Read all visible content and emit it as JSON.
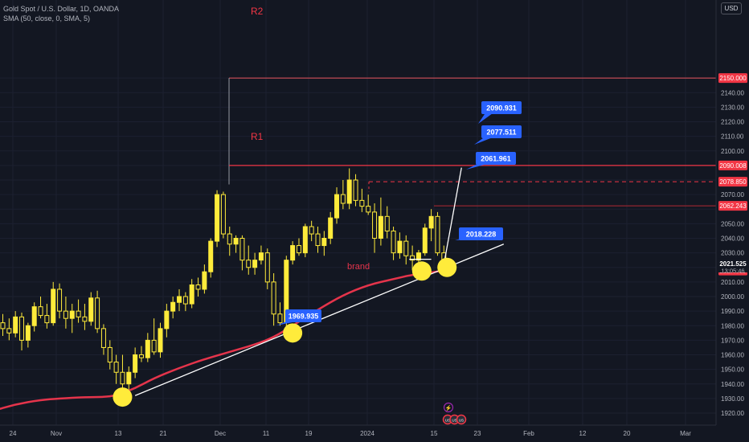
{
  "header": {
    "symbol_line": "Gold Spot / U.S. Dollar, 1D, OANDA",
    "indicator_line": "SMA (50, close, 0, SMA, 5)",
    "currency_button": "USD"
  },
  "chart_data": {
    "type": "candlestick",
    "symbol": "Gold Spot / U.S. Dollar",
    "interval": "1D",
    "source": "OANDA",
    "ylim": [
      1914,
      2163
    ],
    "y_ticks": [
      1920,
      1930,
      1940,
      1950,
      1960,
      1970,
      1980,
      1990,
      2000,
      2010,
      2020,
      2030,
      2040,
      2050,
      2060,
      2070,
      2080,
      2090,
      2100,
      2110,
      2120,
      2130,
      2140,
      2150
    ],
    "x_tick_labels": [
      "24",
      "Nov",
      "13",
      "21",
      "Dec",
      "11",
      "19",
      "2024",
      "15",
      "23",
      "Feb",
      "12",
      "20",
      "Mar"
    ],
    "current_price": "2021.525",
    "countdown": "13:05:46",
    "price_markers": [
      "2150.000",
      "2090.008",
      "2078.850",
      "2062.243",
      "2017.880"
    ],
    "levels": [
      {
        "name": "R2",
        "value": 2150.0,
        "label": "R2"
      },
      {
        "name": "R1",
        "value": 2090.008,
        "label": "R1"
      },
      {
        "name": "dashed",
        "value": 2078.85
      },
      {
        "name": "level-2062",
        "value": 2062.243
      }
    ],
    "callouts": [
      "2090.931",
      "2077.511",
      "2061.961",
      "2018.228",
      "1969.935"
    ],
    "sma_label": "brand",
    "colors": {
      "candle": "#ffeb3b",
      "sma": "#e5344b",
      "level": "#f23645",
      "callout": "#2962ff",
      "circle": "#ffeb3b",
      "trendline": "#ffffff",
      "background": "#131722"
    },
    "candles": [
      {
        "o": 1982,
        "h": 1988,
        "l": 1973,
        "c": 1978
      },
      {
        "o": 1978,
        "h": 1985,
        "l": 1970,
        "c": 1975
      },
      {
        "o": 1975,
        "h": 1990,
        "l": 1972,
        "c": 1986
      },
      {
        "o": 1986,
        "h": 1989,
        "l": 1963,
        "c": 1970
      },
      {
        "o": 1970,
        "h": 1982,
        "l": 1965,
        "c": 1980
      },
      {
        "o": 1980,
        "h": 1996,
        "l": 1976,
        "c": 1993
      },
      {
        "o": 1993,
        "h": 2000,
        "l": 1985,
        "c": 1987
      },
      {
        "o": 1987,
        "h": 1995,
        "l": 1978,
        "c": 1982
      },
      {
        "o": 1982,
        "h": 2010,
        "l": 1980,
        "c": 2005
      },
      {
        "o": 2005,
        "h": 2009,
        "l": 1985,
        "c": 1990
      },
      {
        "o": 1990,
        "h": 2000,
        "l": 1978,
        "c": 1985
      },
      {
        "o": 1985,
        "h": 1995,
        "l": 1975,
        "c": 1990
      },
      {
        "o": 1990,
        "h": 1998,
        "l": 1982,
        "c": 1986
      },
      {
        "o": 1986,
        "h": 1995,
        "l": 1977,
        "c": 1983
      },
      {
        "o": 1983,
        "h": 2003,
        "l": 1980,
        "c": 1999
      },
      {
        "o": 1999,
        "h": 2004,
        "l": 1975,
        "c": 1978
      },
      {
        "o": 1978,
        "h": 1981,
        "l": 1960,
        "c": 1965
      },
      {
        "o": 1965,
        "h": 1970,
        "l": 1950,
        "c": 1955
      },
      {
        "o": 1955,
        "h": 1960,
        "l": 1940,
        "c": 1948
      },
      {
        "o": 1948,
        "h": 1960,
        "l": 1935,
        "c": 1940
      },
      {
        "o": 1940,
        "h": 1952,
        "l": 1932,
        "c": 1948
      },
      {
        "o": 1948,
        "h": 1965,
        "l": 1944,
        "c": 1960
      },
      {
        "o": 1960,
        "h": 1966,
        "l": 1955,
        "c": 1958
      },
      {
        "o": 1958,
        "h": 1975,
        "l": 1955,
        "c": 1970
      },
      {
        "o": 1970,
        "h": 1985,
        "l": 1960,
        "c": 1962
      },
      {
        "o": 1962,
        "h": 1982,
        "l": 1958,
        "c": 1978
      },
      {
        "o": 1978,
        "h": 1995,
        "l": 1972,
        "c": 1990
      },
      {
        "o": 1990,
        "h": 2000,
        "l": 1985,
        "c": 1996
      },
      {
        "o": 1996,
        "h": 2005,
        "l": 1990,
        "c": 2000
      },
      {
        "o": 2000,
        "h": 2003,
        "l": 1990,
        "c": 1995
      },
      {
        "o": 1995,
        "h": 2012,
        "l": 1992,
        "c": 2008
      },
      {
        "o": 2008,
        "h": 2013,
        "l": 2000,
        "c": 2005
      },
      {
        "o": 2005,
        "h": 2022,
        "l": 2002,
        "c": 2017
      },
      {
        "o": 2017,
        "h": 2040,
        "l": 2013,
        "c": 2038
      },
      {
        "o": 2038,
        "h": 2073,
        "l": 2034,
        "c": 2070
      },
      {
        "o": 2070,
        "h": 2072,
        "l": 2040,
        "c": 2043
      },
      {
        "o": 2043,
        "h": 2048,
        "l": 2028,
        "c": 2036
      },
      {
        "o": 2036,
        "h": 2042,
        "l": 2030,
        "c": 2040
      },
      {
        "o": 2040,
        "h": 2042,
        "l": 2018,
        "c": 2025
      },
      {
        "o": 2025,
        "h": 2035,
        "l": 2015,
        "c": 2020
      },
      {
        "o": 2020,
        "h": 2030,
        "l": 2015,
        "c": 2025
      },
      {
        "o": 2025,
        "h": 2035,
        "l": 2022,
        "c": 2030
      },
      {
        "o": 2030,
        "h": 2033,
        "l": 2005,
        "c": 2010
      },
      {
        "o": 2010,
        "h": 2016,
        "l": 1980,
        "c": 1988
      },
      {
        "o": 1988,
        "h": 1996,
        "l": 1980,
        "c": 1982
      },
      {
        "o": 1982,
        "h": 2028,
        "l": 1975,
        "c": 2025
      },
      {
        "o": 2025,
        "h": 2038,
        "l": 2022,
        "c": 2035
      },
      {
        "o": 2035,
        "h": 2040,
        "l": 2028,
        "c": 2030
      },
      {
        "o": 2030,
        "h": 2050,
        "l": 2027,
        "c": 2048
      },
      {
        "o": 2048,
        "h": 2052,
        "l": 2038,
        "c": 2043
      },
      {
        "o": 2043,
        "h": 2048,
        "l": 2030,
        "c": 2035
      },
      {
        "o": 2035,
        "h": 2045,
        "l": 2028,
        "c": 2040
      },
      {
        "o": 2040,
        "h": 2058,
        "l": 2036,
        "c": 2054
      },
      {
        "o": 2054,
        "h": 2075,
        "l": 2050,
        "c": 2070
      },
      {
        "o": 2070,
        "h": 2080,
        "l": 2060,
        "c": 2064
      },
      {
        "o": 2064,
        "h": 2088,
        "l": 2060,
        "c": 2080
      },
      {
        "o": 2080,
        "h": 2084,
        "l": 2062,
        "c": 2066
      },
      {
        "o": 2066,
        "h": 2074,
        "l": 2058,
        "c": 2062
      },
      {
        "o": 2062,
        "h": 2070,
        "l": 2056,
        "c": 2058
      },
      {
        "o": 2058,
        "h": 2064,
        "l": 2030,
        "c": 2040
      },
      {
        "o": 2040,
        "h": 2068,
        "l": 2035,
        "c": 2055
      },
      {
        "o": 2055,
        "h": 2062,
        "l": 2040,
        "c": 2045
      },
      {
        "o": 2045,
        "h": 2048,
        "l": 2025,
        "c": 2030
      },
      {
        "o": 2030,
        "h": 2044,
        "l": 2026,
        "c": 2038
      },
      {
        "o": 2038,
        "h": 2042,
        "l": 2022,
        "c": 2028
      },
      {
        "o": 2028,
        "h": 2035,
        "l": 2018,
        "c": 2025
      },
      {
        "o": 2025,
        "h": 2032,
        "l": 2018,
        "c": 2030
      },
      {
        "o": 2030,
        "h": 2050,
        "l": 2028,
        "c": 2047
      },
      {
        "o": 2047,
        "h": 2060,
        "l": 2038,
        "c": 2055
      },
      {
        "o": 2055,
        "h": 2058,
        "l": 2028,
        "c": 2030
      },
      {
        "o": 2030,
        "h": 2035,
        "l": 2018,
        "c": 2022
      }
    ],
    "sma_points": [
      {
        "i": -4.5,
        "v": 1918
      },
      {
        "i": -2,
        "v": 1921
      },
      {
        "i": 2,
        "v": 1926
      },
      {
        "i": 6,
        "v": 1929
      },
      {
        "i": 9,
        "v": 1930
      },
      {
        "i": 13,
        "v": 1931
      },
      {
        "i": 16,
        "v": 1931
      },
      {
        "i": 18,
        "v": 1932
      },
      {
        "i": 21,
        "v": 1937
      },
      {
        "i": 24,
        "v": 1944
      },
      {
        "i": 28,
        "v": 1951
      },
      {
        "i": 32,
        "v": 1957
      },
      {
        "i": 36,
        "v": 1962
      },
      {
        "i": 40,
        "v": 1967
      },
      {
        "i": 43,
        "v": 1972
      },
      {
        "i": 46,
        "v": 1980
      },
      {
        "i": 50,
        "v": 1991
      },
      {
        "i": 54,
        "v": 2001
      },
      {
        "i": 58,
        "v": 2008
      },
      {
        "i": 62,
        "v": 2012
      },
      {
        "i": 65,
        "v": 2015
      },
      {
        "i": 68,
        "v": 2016.5
      },
      {
        "i": 70,
        "v": 2017.9
      }
    ],
    "trendlines": [
      {
        "i1": 21,
        "v1": 1932,
        "i2": 79.5,
        "v2": 2036
      },
      {
        "i1": 64.5,
        "v1": 2025.6,
        "i2": 68,
        "v2": 2025.6
      },
      {
        "i1": 70,
        "v1": 2022,
        "i2": 72.8,
        "v2": 2088.5
      }
    ],
    "circles": [
      {
        "i": 19,
        "v": 1931
      },
      {
        "i": 46,
        "v": 1975
      },
      {
        "i": 66.5,
        "v": 2017.5
      },
      {
        "i": 70.5,
        "v": 2020
      }
    ],
    "events": [
      "⚡",
      "US",
      "US",
      "US"
    ]
  }
}
